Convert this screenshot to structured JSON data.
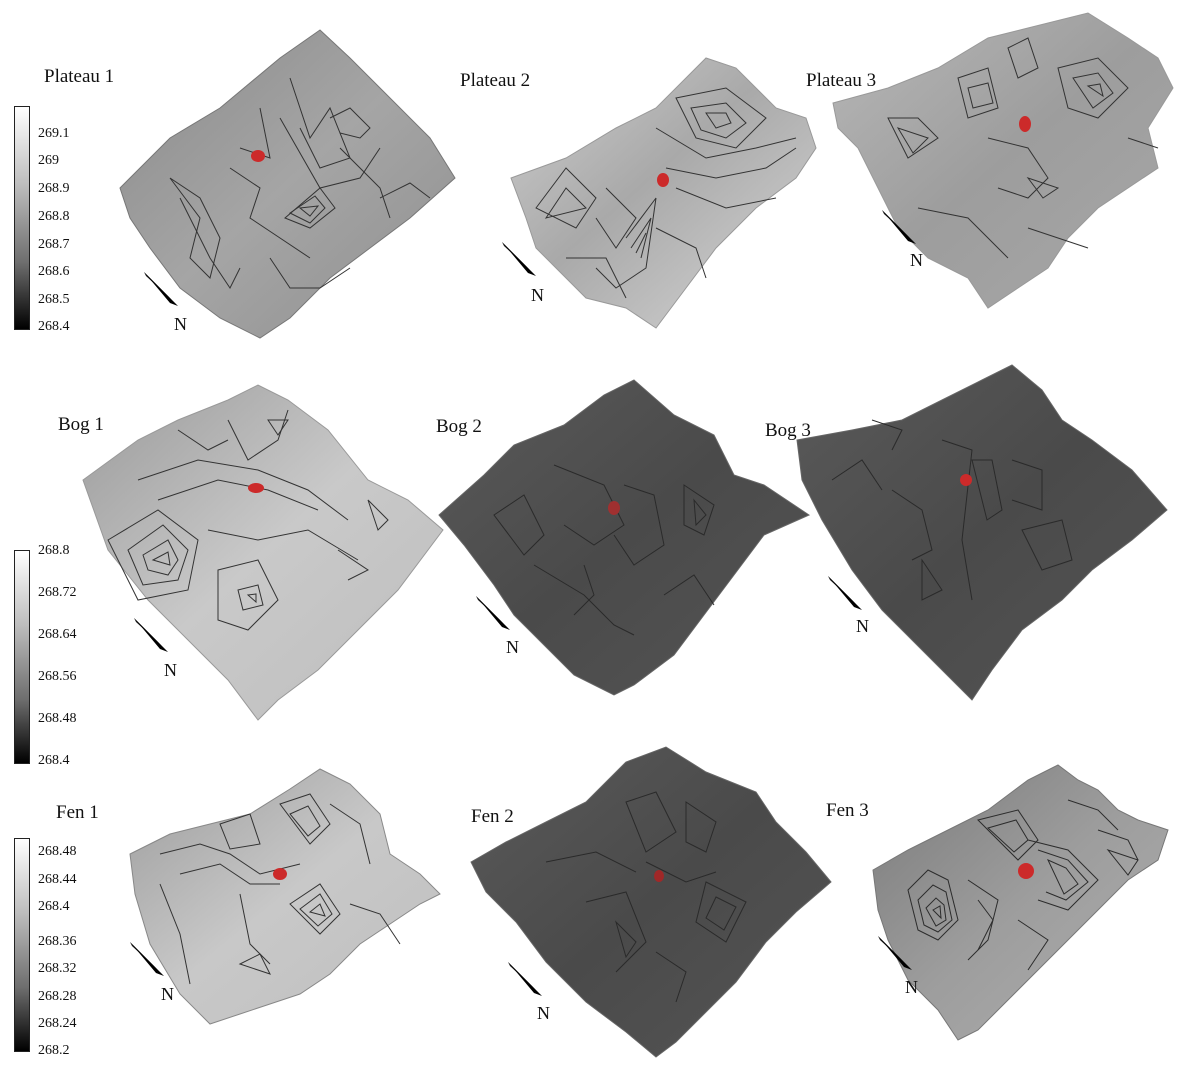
{
  "panels": [
    {
      "title": "Plateau 1",
      "north": "N"
    },
    {
      "title": "Plateau 2",
      "north": "N"
    },
    {
      "title": "Plateau 3",
      "north": "N"
    },
    {
      "title": "Bog 1",
      "north": "N"
    },
    {
      "title": "Bog 2",
      "north": "N"
    },
    {
      "title": "Bog 3",
      "north": "N"
    },
    {
      "title": "Fen 1",
      "north": "N"
    },
    {
      "title": "Fen 2",
      "north": "N"
    },
    {
      "title": "Fen 3",
      "north": "N"
    }
  ],
  "colorbars": [
    {
      "ticks": [
        "269.1",
        "269",
        "268.9",
        "268.8",
        "268.7",
        "268.6",
        "268.5",
        "268.4"
      ]
    },
    {
      "ticks": [
        "268.8",
        "268.72",
        "268.64",
        "268.56",
        "268.48",
        "268.4"
      ]
    },
    {
      "ticks": [
        "268.48",
        "268.44",
        "268.4",
        "268.36",
        "268.32",
        "268.28",
        "268.24",
        "268.2"
      ]
    }
  ],
  "colors": {
    "marker": "#cc2a2a",
    "contour": "#333333"
  }
}
